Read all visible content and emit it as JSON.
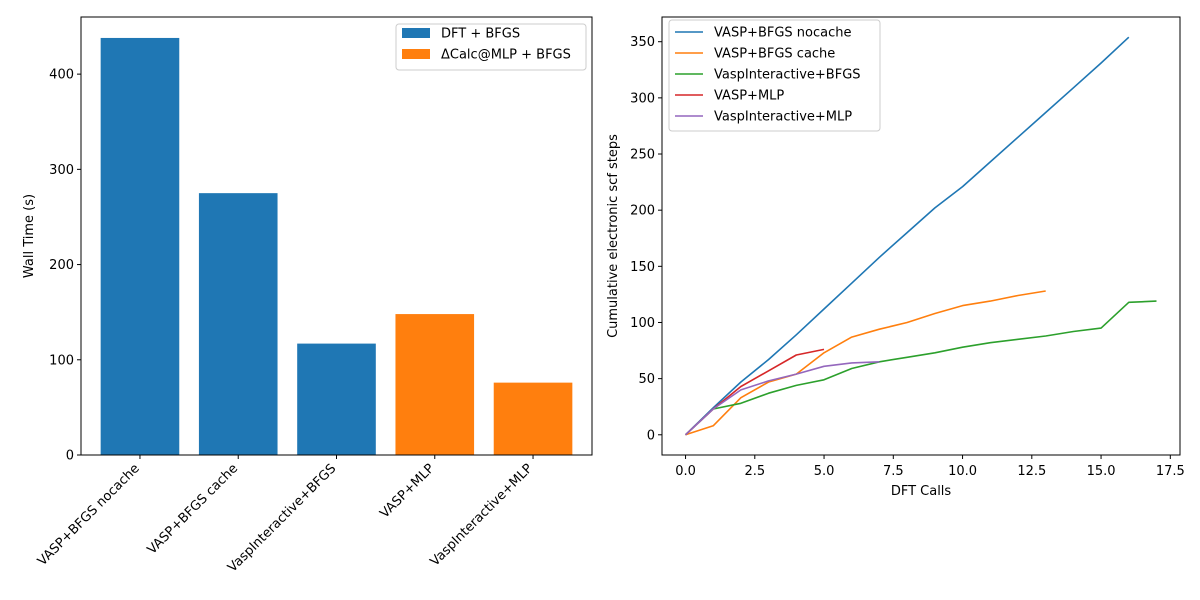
{
  "chart_data": [
    {
      "type": "bar",
      "title": "",
      "xlabel": "",
      "ylabel": "Wall Time (s)",
      "ylim": [
        0,
        460
      ],
      "yticks": [
        0,
        100,
        200,
        300,
        400
      ],
      "categories": [
        "VASP+BFGS nocache",
        "VASP+BFGS cache",
        "VaspInteractive+BFGS",
        "VASP+MLP",
        "VaspInteractive+MLP"
      ],
      "values": [
        438,
        275,
        117,
        148,
        76
      ],
      "bar_groups": [
        0,
        0,
        0,
        1,
        1
      ],
      "groups": [
        {
          "name": "DFT + BFGS",
          "color": "#1f77b4"
        },
        {
          "name": "ΔCalc@MLP + BFGS",
          "color": "#ff7f0e"
        }
      ],
      "legend": "top-right",
      "grid": false
    },
    {
      "type": "line",
      "title": "",
      "xlabel": "DFT Calls",
      "ylabel": "Cumulative electronic scf steps",
      "xlim": [
        -0.85,
        17.85
      ],
      "ylim": [
        -18,
        372
      ],
      "xticks": [
        "0.0",
        "2.5",
        "5.0",
        "7.5",
        "10.0",
        "12.5",
        "15.0",
        "17.5"
      ],
      "yticks": [
        0,
        50,
        100,
        150,
        200,
        250,
        300,
        350
      ],
      "legend": "top-left",
      "grid": false,
      "series": [
        {
          "name": "VASP+BFGS nocache",
          "color": "#1f77b4",
          "x": [
            0,
            1,
            2,
            3,
            4,
            5,
            6,
            7,
            8,
            9,
            10,
            11,
            12,
            13,
            14,
            15,
            16
          ],
          "y": [
            0,
            24,
            47,
            67,
            89,
            112,
            135,
            158,
            180,
            202,
            221,
            243,
            265,
            287,
            309,
            331,
            354
          ]
        },
        {
          "name": "VASP+BFGS cache",
          "color": "#ff7f0e",
          "x": [
            0,
            1,
            2,
            3,
            4,
            5,
            6,
            7,
            8,
            9,
            10,
            11,
            12,
            13
          ],
          "y": [
            0,
            8,
            33,
            47,
            54,
            73,
            87,
            94,
            100,
            108,
            115,
            119,
            124,
            128
          ]
        },
        {
          "name": "VaspInteractive+BFGS",
          "color": "#2ca02c",
          "x": [
            0,
            1,
            2,
            3,
            4,
            5,
            6,
            7,
            8,
            9,
            10,
            11,
            12,
            13,
            14,
            15,
            16,
            17
          ],
          "y": [
            0,
            23,
            28,
            37,
            44,
            49,
            59,
            65,
            69,
            73,
            78,
            82,
            85,
            88,
            92,
            95,
            118,
            119
          ]
        },
        {
          "name": "VASP+MLP",
          "color": "#d62728",
          "x": [
            0,
            1,
            2,
            3,
            4,
            5
          ],
          "y": [
            0,
            23,
            43,
            57,
            71,
            76
          ]
        },
        {
          "name": "VaspInteractive+MLP",
          "color": "#9467bd",
          "x": [
            0,
            1,
            2,
            3,
            4,
            5,
            6,
            7
          ],
          "y": [
            0,
            23,
            40,
            48,
            54,
            61,
            64,
            65
          ]
        }
      ]
    }
  ]
}
